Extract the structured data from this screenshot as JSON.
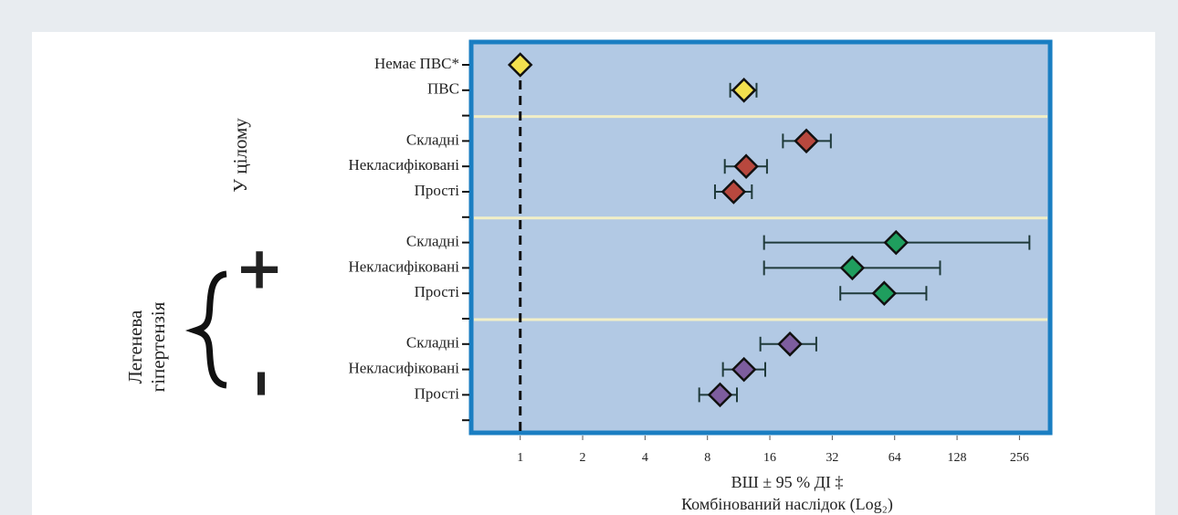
{
  "chart_data": {
    "type": "forest",
    "categories": [
      "Немає ПВС*",
      "ПВС",
      null,
      "Складні",
      "Некласифіковані",
      "Прості",
      null,
      "Складні",
      "Некласифіковані",
      "Прості",
      null,
      "Складні",
      "Некласифіковані",
      "Прості",
      null
    ],
    "values": [
      1,
      12,
      null,
      24,
      12.3,
      10.7,
      null,
      65,
      40,
      57,
      null,
      20,
      12,
      9.2,
      null
    ],
    "lower": [
      null,
      10.3,
      null,
      18.5,
      9.7,
      8.7,
      null,
      15,
      15,
      35,
      null,
      14.4,
      9.5,
      7.3,
      null
    ],
    "upper": [
      null,
      13.8,
      null,
      31.5,
      15.5,
      13.1,
      null,
      286,
      106,
      91,
      null,
      26.8,
      15.2,
      11.1,
      null
    ],
    "colors": [
      "#f2e04e",
      "#f2e04e",
      null,
      "#b8483e",
      "#b8483e",
      "#b8483e",
      null,
      "#1f9e5e",
      "#1f9e5e",
      "#1f9e5e",
      null,
      "#7d5d9e",
      "#7d5d9e",
      "#7d5d9e",
      null
    ],
    "xscale": "log2",
    "xlim": [
      0.58,
      360
    ],
    "xticks": [
      1,
      2,
      4,
      8,
      16,
      32,
      64,
      128,
      256
    ],
    "reference_line": 1,
    "xlabel": [
      "ВШ ± 95 % ДІ ‡",
      "Комбінований наслідок (Log₂)"
    ],
    "group_overall": "У цілому",
    "group_ph": [
      "Легенева",
      "гіпертензія"
    ],
    "ph_plus": "+",
    "ph_minus": "–"
  }
}
